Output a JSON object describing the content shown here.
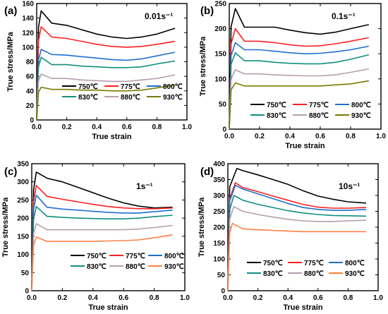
{
  "chart_data": [
    {
      "type": "line",
      "panel_label": "(a)",
      "rate_label": "0.01s⁻¹",
      "xlabel": "True strain",
      "ylabel": "True stress/MPa",
      "xlim": [
        0.0,
        1.0
      ],
      "ylim": [
        0,
        160
      ],
      "xticks": [
        "0.0",
        "0.2",
        "0.4",
        "0.6",
        "0.8",
        "1.0"
      ],
      "yticks": [
        "0",
        "20",
        "40",
        "60",
        "80",
        "100",
        "120",
        "140",
        "160"
      ],
      "legend_position": "bottom-center",
      "series": [
        {
          "name": "750℃",
          "color": "#000000",
          "peak_x": 0.03,
          "peak_y": 150,
          "x": [
            0.1,
            0.2,
            0.3,
            0.4,
            0.5,
            0.6,
            0.7,
            0.8,
            0.92
          ],
          "y": [
            133,
            130,
            124,
            118,
            114,
            112,
            114,
            118,
            126
          ]
        },
        {
          "name": "775℃",
          "color": "#ff2020",
          "peak_x": 0.03,
          "peak_y": 128,
          "x": [
            0.1,
            0.2,
            0.3,
            0.4,
            0.5,
            0.6,
            0.7,
            0.8,
            0.92
          ],
          "y": [
            114,
            112,
            108,
            104,
            101,
            100,
            101,
            104,
            108
          ]
        },
        {
          "name": "800℃",
          "color": "#1e6fd0",
          "peak_x": 0.03,
          "peak_y": 97,
          "x": [
            0.1,
            0.2,
            0.3,
            0.4,
            0.5,
            0.6,
            0.7,
            0.8,
            0.92
          ],
          "y": [
            90,
            89,
            87,
            85,
            83,
            82,
            84,
            88,
            93
          ]
        },
        {
          "name": "830℃",
          "color": "#0f8f80",
          "peak_x": 0.03,
          "peak_y": 86,
          "x": [
            0.1,
            0.2,
            0.3,
            0.4,
            0.5,
            0.6,
            0.7,
            0.8,
            0.92
          ],
          "y": [
            76,
            76,
            74,
            73,
            72,
            72,
            73,
            77,
            81
          ]
        },
        {
          "name": "880℃",
          "color": "#b89cb0",
          "peak_x": 0.03,
          "peak_y": 63,
          "x": [
            0.1,
            0.2,
            0.3,
            0.4,
            0.5,
            0.6,
            0.7,
            0.8,
            0.92
          ],
          "y": [
            57,
            57,
            55,
            54,
            53,
            53,
            55,
            57,
            62
          ]
        },
        {
          "name": "930℃",
          "color": "#7a7a00",
          "peak_x": 0.03,
          "peak_y": 45,
          "x": [
            0.1,
            0.2,
            0.3,
            0.4,
            0.5,
            0.6,
            0.7,
            0.8,
            0.92
          ],
          "y": [
            42,
            42,
            41,
            41,
            40,
            40,
            41,
            44,
            48
          ]
        }
      ]
    },
    {
      "type": "line",
      "panel_label": "(b)",
      "rate_label": "0.1s⁻¹",
      "xlabel": "True strain",
      "ylabel": "True stress/MPa",
      "xlim": [
        0.0,
        1.0
      ],
      "ylim": [
        0,
        250
      ],
      "xticks": [
        "0.0",
        "0.2",
        "0.4",
        "0.6",
        "0.8",
        "1.0"
      ],
      "yticks": [
        "0",
        "50",
        "100",
        "150",
        "200",
        "250"
      ],
      "legend_position": "bottom-center",
      "series": [
        {
          "name": "750℃",
          "color": "#000000",
          "peak_x": 0.04,
          "peak_y": 240,
          "x": [
            0.1,
            0.2,
            0.3,
            0.4,
            0.5,
            0.6,
            0.7,
            0.8,
            0.92
          ],
          "y": [
            203,
            203,
            203,
            197,
            192,
            189,
            193,
            200,
            208
          ]
        },
        {
          "name": "775℃",
          "color": "#ff2020",
          "peak_x": 0.04,
          "peak_y": 200,
          "x": [
            0.1,
            0.2,
            0.3,
            0.4,
            0.5,
            0.6,
            0.7,
            0.8,
            0.92
          ],
          "y": [
            175,
            175,
            172,
            168,
            165,
            166,
            170,
            175,
            182
          ]
        },
        {
          "name": "800℃",
          "color": "#1e6fd0",
          "peak_x": 0.04,
          "peak_y": 172,
          "x": [
            0.1,
            0.2,
            0.3,
            0.4,
            0.5,
            0.6,
            0.7,
            0.8,
            0.92
          ],
          "y": [
            158,
            158,
            155,
            152,
            150,
            151,
            154,
            158,
            165
          ]
        },
        {
          "name": "830℃",
          "color": "#0f8f80",
          "peak_x": 0.04,
          "peak_y": 152,
          "x": [
            0.1,
            0.2,
            0.3,
            0.4,
            0.5,
            0.6,
            0.7,
            0.8,
            0.92
          ],
          "y": [
            136,
            136,
            133,
            131,
            130,
            130,
            133,
            139,
            148
          ]
        },
        {
          "name": "880℃",
          "color": "#b89cb0",
          "peak_x": 0.04,
          "peak_y": 118,
          "x": [
            0.1,
            0.2,
            0.3,
            0.4,
            0.5,
            0.6,
            0.7,
            0.8,
            0.92
          ],
          "y": [
            110,
            110,
            108,
            107,
            106,
            106,
            108,
            113,
            120
          ]
        },
        {
          "name": "930℃",
          "color": "#7a7a00",
          "peak_x": 0.04,
          "peak_y": 92,
          "x": [
            0.1,
            0.2,
            0.3,
            0.4,
            0.5,
            0.6,
            0.7,
            0.8,
            0.92
          ],
          "y": [
            86,
            86,
            86,
            86,
            86,
            86,
            88,
            90,
            96
          ]
        }
      ]
    },
    {
      "type": "line",
      "panel_label": "(c)",
      "rate_label": "1s⁻¹",
      "xlabel": "True strain",
      "ylabel": "True stress/MPa",
      "xlim": [
        0.0,
        1.0
      ],
      "ylim": [
        0,
        350
      ],
      "xticks": [
        "0.0",
        "0.2",
        "0.4",
        "0.6",
        "0.8",
        "1.0"
      ],
      "yticks": [
        "0",
        "50",
        "100",
        "150",
        "200",
        "250",
        "300",
        "350"
      ],
      "legend_position": "bottom-right",
      "series": [
        {
          "name": "750℃",
          "color": "#000000",
          "peak_x": 0.03,
          "peak_y": 327,
          "x": [
            0.1,
            0.2,
            0.3,
            0.4,
            0.5,
            0.6,
            0.7,
            0.8,
            0.92
          ],
          "y": [
            310,
            300,
            285,
            270,
            255,
            242,
            233,
            228,
            230
          ]
        },
        {
          "name": "775℃",
          "color": "#ff2020",
          "peak_x": 0.03,
          "peak_y": 290,
          "x": [
            0.1,
            0.2,
            0.3,
            0.4,
            0.5,
            0.6,
            0.7,
            0.8,
            0.92
          ],
          "y": [
            260,
            252,
            245,
            238,
            232,
            228,
            226,
            226,
            228
          ]
        },
        {
          "name": "800℃",
          "color": "#1e6fd0",
          "peak_x": 0.03,
          "peak_y": 263,
          "x": [
            0.1,
            0.2,
            0.3,
            0.4,
            0.5,
            0.6,
            0.7,
            0.8,
            0.92
          ],
          "y": [
            230,
            225,
            222,
            219,
            216,
            214,
            214,
            218,
            222
          ]
        },
        {
          "name": "830℃",
          "color": "#0f8f80",
          "peak_x": 0.03,
          "peak_y": 232,
          "x": [
            0.1,
            0.2,
            0.3,
            0.4,
            0.5,
            0.6,
            0.7,
            0.8,
            0.92
          ],
          "y": [
            205,
            202,
            200,
            199,
            198,
            198,
            200,
            204,
            208
          ]
        },
        {
          "name": "880℃",
          "color": "#b89cb0",
          "peak_x": 0.03,
          "peak_y": 185,
          "x": [
            0.1,
            0.2,
            0.3,
            0.4,
            0.5,
            0.6,
            0.7,
            0.8,
            0.92
          ],
          "y": [
            168,
            168,
            168,
            168,
            168,
            168,
            170,
            174,
            180
          ]
        },
        {
          "name": "930℃",
          "color": "#ff8040",
          "peak_x": 0.03,
          "peak_y": 148,
          "x": [
            0.1,
            0.2,
            0.3,
            0.4,
            0.5,
            0.6,
            0.7,
            0.8,
            0.92
          ],
          "y": [
            136,
            136,
            136,
            136,
            137,
            138,
            140,
            146,
            154
          ]
        }
      ]
    },
    {
      "type": "line",
      "panel_label": "(d)",
      "rate_label": "10s⁻¹",
      "xlabel": "True strain",
      "ylabel": "True stress/MPa",
      "xlim": [
        0.0,
        1.0
      ],
      "ylim": [
        0,
        400
      ],
      "xticks": [
        "0.0",
        "0.2",
        "0.4",
        "0.6",
        "0.8",
        "1.0"
      ],
      "yticks": [
        "0",
        "50",
        "100",
        "150",
        "200",
        "250",
        "300",
        "350",
        "400"
      ],
      "legend_position": "bottom-right",
      "series": [
        {
          "name": "750℃",
          "color": "#000000",
          "peak_x": 0.06,
          "peak_y": 385,
          "x": [
            0.1,
            0.2,
            0.3,
            0.4,
            0.5,
            0.6,
            0.7,
            0.8,
            0.92
          ],
          "y": [
            378,
            365,
            350,
            335,
            315,
            298,
            288,
            280,
            276
          ]
        },
        {
          "name": "775℃",
          "color": "#ff2020",
          "peak_x": 0.05,
          "peak_y": 340,
          "x": [
            0.1,
            0.2,
            0.3,
            0.4,
            0.5,
            0.6,
            0.7,
            0.8,
            0.92
          ],
          "y": [
            325,
            312,
            298,
            285,
            272,
            263,
            260,
            260,
            262
          ]
        },
        {
          "name": "800℃",
          "color": "#1e6fd0",
          "peak_x": 0.05,
          "peak_y": 332,
          "x": [
            0.1,
            0.2,
            0.3,
            0.4,
            0.5,
            0.6,
            0.7,
            0.8,
            0.92
          ],
          "y": [
            320,
            305,
            290,
            275,
            262,
            256,
            253,
            253,
            256
          ]
        },
        {
          "name": "830℃",
          "color": "#0f8f80",
          "peak_x": 0.04,
          "peak_y": 300,
          "x": [
            0.1,
            0.2,
            0.3,
            0.4,
            0.5,
            0.6,
            0.7,
            0.8,
            0.92
          ],
          "y": [
            285,
            272,
            262,
            252,
            245,
            240,
            237,
            236,
            235
          ]
        },
        {
          "name": "880℃",
          "color": "#b89cb0",
          "peak_x": 0.04,
          "peak_y": 265,
          "x": [
            0.1,
            0.2,
            0.3,
            0.4,
            0.5,
            0.6,
            0.7,
            0.8,
            0.92
          ],
          "y": [
            250,
            240,
            232,
            225,
            220,
            218,
            218,
            220,
            222
          ]
        },
        {
          "name": "930℃",
          "color": "#ff8040",
          "peak_x": 0.03,
          "peak_y": 212,
          "x": [
            0.1,
            0.2,
            0.3,
            0.4,
            0.5,
            0.6,
            0.7,
            0.8,
            0.92
          ],
          "y": [
            195,
            192,
            190,
            188,
            186,
            186,
            186,
            186,
            186
          ]
        }
      ]
    }
  ]
}
